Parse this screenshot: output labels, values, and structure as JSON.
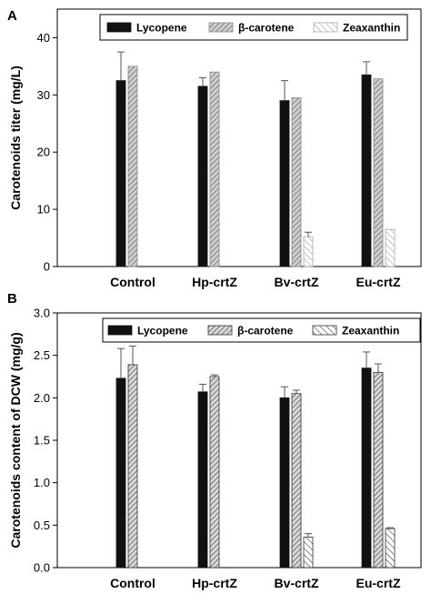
{
  "chart_data": [
    {
      "type": "bar",
      "panel": "A",
      "categories": [
        "Control",
        "Hp-crtZ",
        "Bv-crtZ",
        "Eu-crtZ"
      ],
      "ylabel": "Carotenoids titer (mg/L)",
      "ylim": [
        0,
        45
      ],
      "yticks": [
        0,
        10,
        20,
        30,
        40
      ],
      "tick_format": 0,
      "legend_position": "top-right",
      "series": [
        {
          "name": "Lycopene",
          "values": [
            32.5,
            31.5,
            29.0,
            33.5
          ],
          "errors": [
            5.0,
            1.5,
            3.5,
            2.3
          ],
          "pattern": "solid"
        },
        {
          "name": "β-carotene",
          "values": [
            35.0,
            34.0,
            29.5,
            32.8
          ],
          "errors": [
            0,
            0,
            0,
            0
          ],
          "pattern": "gray-hatch"
        },
        {
          "name": "Zeaxanthin",
          "values": [
            null,
            null,
            5.2,
            6.5
          ],
          "errors": [
            0,
            0,
            0.8,
            0
          ],
          "pattern": "light-hatch"
        }
      ]
    },
    {
      "type": "bar",
      "panel": "B",
      "categories": [
        "Control",
        "Hp-crtZ",
        "Bv-crtZ",
        "Eu-crtZ"
      ],
      "ylabel": "Carotenoids content of DCW (mg/g)",
      "ylim": [
        0,
        3.0
      ],
      "yticks": [
        0.0,
        0.5,
        1.0,
        1.5,
        2.0,
        2.5,
        3.0
      ],
      "tick_format": 1,
      "legend_position": "top-right",
      "series": [
        {
          "name": "Lycopene",
          "values": [
            2.23,
            2.07,
            2.0,
            2.35
          ],
          "errors": [
            0.35,
            0.09,
            0.13,
            0.19
          ],
          "pattern": "solid"
        },
        {
          "name": "β-carotene",
          "values": [
            2.39,
            2.25,
            2.05,
            2.3
          ],
          "errors": [
            0.22,
            0.02,
            0.04,
            0.1
          ],
          "pattern": "gray-hatch"
        },
        {
          "name": "Zeaxanthin",
          "values": [
            null,
            null,
            0.36,
            0.46
          ],
          "errors": [
            0,
            0,
            0.04,
            0.01
          ],
          "pattern": "light-hatch"
        }
      ]
    }
  ]
}
